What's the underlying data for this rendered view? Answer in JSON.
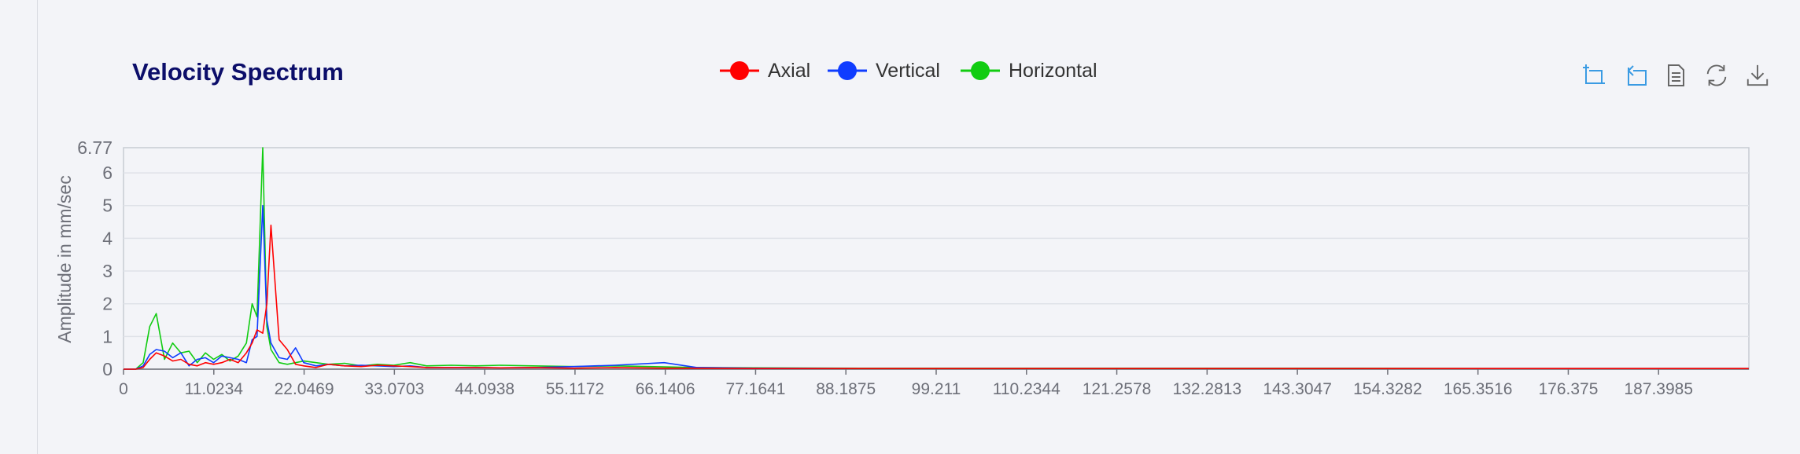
{
  "toolbar": {
    "icons": [
      "zoom-icon",
      "zoom-reset-icon",
      "data-view-icon",
      "restore-icon",
      "save-image-icon"
    ]
  },
  "colors": {
    "axial": "#ff0000",
    "vertical": "#0f3cff",
    "horizontal": "#11cc11",
    "title": "#0c0e6a",
    "toolbar_active": "#3a9be3",
    "toolbar_idle": "#666666"
  },
  "chart_data": {
    "type": "line",
    "title": "Velocity Spectrum",
    "xlabel": "",
    "ylabel": "Amplitude in mm/sec",
    "xlim": [
      0,
      198.4219
    ],
    "ylim": [
      0,
      6.77
    ],
    "y_ticks": [
      "0",
      "1",
      "2",
      "3",
      "4",
      "5",
      "6",
      "6.77"
    ],
    "x_ticks": [
      "0",
      "11.0234",
      "22.0469",
      "33.0703",
      "44.0938",
      "55.1172",
      "66.1406",
      "77.1641",
      "88.1875",
      "99.211",
      "110.2344",
      "121.2578",
      "132.2813",
      "143.3047",
      "154.3282",
      "165.3516",
      "176.375",
      "187.3985"
    ],
    "grid": true,
    "legend_position": "top-center",
    "series": [
      {
        "name": "Axial",
        "color": "#ff0000",
        "x": [
          0,
          1.5,
          2.4,
          3.2,
          4.0,
          5.0,
          6.0,
          7.0,
          8.0,
          9.0,
          10.0,
          11.0,
          12.0,
          13.0,
          14.0,
          15.0,
          15.7,
          16.3,
          17.0,
          17.5,
          18.0,
          19.0,
          20.0,
          21.0,
          22.0,
          23.5,
          25,
          27,
          29,
          31,
          33,
          35,
          37,
          40,
          43,
          46,
          50,
          55,
          60,
          66,
          70,
          77,
          90,
          110,
          130,
          150,
          170,
          190,
          198.4
        ],
        "y": [
          0,
          0,
          0.05,
          0.3,
          0.5,
          0.4,
          0.25,
          0.3,
          0.15,
          0.1,
          0.2,
          0.15,
          0.2,
          0.3,
          0.2,
          0.5,
          0.8,
          1.2,
          1.1,
          2.0,
          4.4,
          0.9,
          0.6,
          0.15,
          0.1,
          0.05,
          0.15,
          0.1,
          0.08,
          0.12,
          0.1,
          0.08,
          0.05,
          0.05,
          0.05,
          0.04,
          0.05,
          0.03,
          0.05,
          0.03,
          0.03,
          0.02,
          0.02,
          0.02,
          0.02,
          0.02,
          0.02,
          0.02,
          0.02
        ]
      },
      {
        "name": "Vertical",
        "color": "#0f3cff",
        "x": [
          0,
          1.5,
          2.4,
          3.2,
          4.0,
          5.0,
          6.0,
          7.0,
          8.0,
          9.0,
          10.0,
          11.0,
          12.0,
          13.0,
          14.0,
          15.0,
          15.7,
          16.3,
          17.0,
          17.5,
          18.0,
          19.0,
          20.0,
          21.0,
          22.0,
          23.5,
          25,
          27,
          29,
          31,
          33,
          35,
          37,
          40,
          43,
          46,
          50,
          55,
          60,
          66,
          70,
          77,
          90,
          110,
          130,
          150,
          170,
          190,
          198.4
        ],
        "y": [
          0,
          0,
          0.1,
          0.45,
          0.6,
          0.55,
          0.35,
          0.5,
          0.1,
          0.3,
          0.35,
          0.2,
          0.4,
          0.35,
          0.3,
          0.2,
          0.9,
          1.0,
          5.0,
          1.5,
          0.8,
          0.35,
          0.3,
          0.65,
          0.2,
          0.1,
          0.15,
          0.1,
          0.12,
          0.1,
          0.08,
          0.1,
          0.05,
          0.05,
          0.05,
          0.04,
          0.05,
          0.08,
          0.12,
          0.2,
          0.05,
          0.03,
          0.02,
          0.02,
          0.02,
          0.02,
          0.02,
          0.02,
          0.02
        ]
      },
      {
        "name": "Horizontal",
        "color": "#11cc11",
        "x": [
          0,
          1.5,
          2.4,
          3.2,
          4.0,
          5.0,
          6.0,
          7.0,
          8.0,
          9.0,
          10.0,
          11.0,
          12.0,
          13.0,
          14.0,
          15.0,
          15.7,
          16.3,
          17.0,
          17.5,
          18.0,
          19.0,
          20.0,
          21.0,
          22.0,
          23.5,
          25,
          27,
          29,
          31,
          33,
          35,
          37,
          40,
          43,
          46,
          50,
          55,
          60,
          66,
          70,
          77,
          90,
          110,
          130,
          150,
          170,
          190,
          198.4
        ],
        "y": [
          0,
          0,
          0.2,
          1.3,
          1.7,
          0.3,
          0.8,
          0.5,
          0.55,
          0.2,
          0.5,
          0.3,
          0.45,
          0.25,
          0.4,
          0.8,
          2.0,
          1.6,
          6.77,
          1.3,
          0.6,
          0.2,
          0.15,
          0.2,
          0.25,
          0.2,
          0.15,
          0.18,
          0.1,
          0.15,
          0.12,
          0.2,
          0.1,
          0.12,
          0.1,
          0.12,
          0.1,
          0.08,
          0.1,
          0.07,
          0.05,
          0.04,
          0.03,
          0.03,
          0.03,
          0.03,
          0.02,
          0.02,
          0.02
        ]
      }
    ]
  }
}
